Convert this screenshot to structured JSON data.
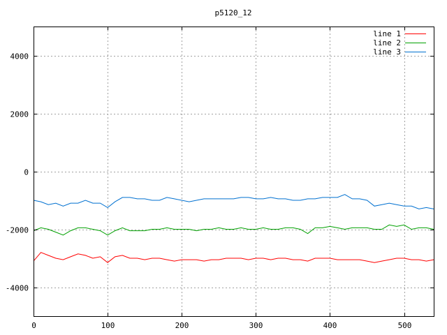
{
  "chart_data": {
    "type": "line",
    "title": "p5120_12",
    "xlabel": "",
    "ylabel": "",
    "xlim": [
      0,
      540
    ],
    "ylim": [
      -5000,
      5000
    ],
    "x_ticks": [
      0,
      100,
      200,
      300,
      400,
      500
    ],
    "y_ticks": [
      -4000,
      -2000,
      0,
      2000,
      4000
    ],
    "grid": true,
    "legend": "top-right",
    "series": [
      {
        "name": "line 1",
        "color": "#ff0000",
        "x": [
          0,
          10,
          20,
          30,
          40,
          50,
          60,
          70,
          80,
          90,
          100,
          110,
          120,
          130,
          140,
          150,
          160,
          170,
          180,
          190,
          200,
          210,
          220,
          230,
          240,
          250,
          260,
          270,
          280,
          290,
          300,
          310,
          320,
          330,
          340,
          350,
          360,
          370,
          380,
          390,
          400,
          410,
          420,
          430,
          440,
          450,
          460,
          470,
          480,
          490,
          500,
          510,
          520,
          530,
          540
        ],
        "values": [
          -3100,
          -2800,
          -2900,
          -3000,
          -3050,
          -2950,
          -2850,
          -2900,
          -3000,
          -2950,
          -3150,
          -2950,
          -2900,
          -3000,
          -3000,
          -3050,
          -3000,
          -3000,
          -3050,
          -3100,
          -3050,
          -3050,
          -3050,
          -3100,
          -3050,
          -3050,
          -3000,
          -3000,
          -3000,
          -3050,
          -3000,
          -3000,
          -3050,
          -3000,
          -3000,
          -3050,
          -3050,
          -3100,
          -3000,
          -3000,
          -3000,
          -3050,
          -3050,
          -3050,
          -3050,
          -3100,
          -3150,
          -3100,
          -3050,
          -3000,
          -3000,
          -3050,
          -3050,
          -3100,
          -3050
        ]
      },
      {
        "name": "line 2",
        "color": "#00a000",
        "x": [
          0,
          10,
          20,
          30,
          40,
          50,
          60,
          70,
          80,
          90,
          100,
          110,
          120,
          130,
          140,
          150,
          160,
          170,
          180,
          190,
          200,
          210,
          220,
          230,
          240,
          250,
          260,
          270,
          280,
          290,
          300,
          310,
          320,
          330,
          340,
          350,
          360,
          370,
          380,
          390,
          400,
          410,
          420,
          430,
          440,
          450,
          460,
          470,
          480,
          490,
          500,
          510,
          520,
          530,
          540
        ],
        "values": [
          -2050,
          -1950,
          -2000,
          -2100,
          -2200,
          -2050,
          -1950,
          -1950,
          -2000,
          -2050,
          -2200,
          -2050,
          -1950,
          -2050,
          -2050,
          -2050,
          -2000,
          -2000,
          -1950,
          -2000,
          -2000,
          -2000,
          -2050,
          -2000,
          -2000,
          -1950,
          -2000,
          -2000,
          -1950,
          -2000,
          -2000,
          -1950,
          -2000,
          -2000,
          -1950,
          -1950,
          -2000,
          -2150,
          -1950,
          -1950,
          -1900,
          -1950,
          -2000,
          -1950,
          -1950,
          -1950,
          -2000,
          -2000,
          -1850,
          -1900,
          -1850,
          -2000,
          -1950,
          -1950,
          -2000
        ]
      },
      {
        "name": "line 3",
        "color": "#0070d0",
        "x": [
          0,
          10,
          20,
          30,
          40,
          50,
          60,
          70,
          80,
          90,
          100,
          110,
          120,
          130,
          140,
          150,
          160,
          170,
          180,
          190,
          200,
          210,
          220,
          230,
          240,
          250,
          260,
          270,
          280,
          290,
          300,
          310,
          320,
          330,
          340,
          350,
          360,
          370,
          380,
          390,
          400,
          410,
          420,
          430,
          440,
          450,
          460,
          470,
          480,
          490,
          500,
          510,
          520,
          530,
          540
        ],
        "values": [
          -1000,
          -1050,
          -1150,
          -1100,
          -1200,
          -1100,
          -1100,
          -1000,
          -1100,
          -1100,
          -1250,
          -1050,
          -900,
          -900,
          -950,
          -950,
          -1000,
          -1000,
          -900,
          -950,
          -1000,
          -1050,
          -1000,
          -950,
          -950,
          -950,
          -950,
          -950,
          -900,
          -900,
          -950,
          -950,
          -900,
          -950,
          -950,
          -1000,
          -1000,
          -950,
          -950,
          -900,
          -900,
          -900,
          -800,
          -950,
          -950,
          -1000,
          -1200,
          -1150,
          -1100,
          -1150,
          -1200,
          -1200,
          -1300,
          -1250,
          -1300
        ]
      }
    ]
  }
}
